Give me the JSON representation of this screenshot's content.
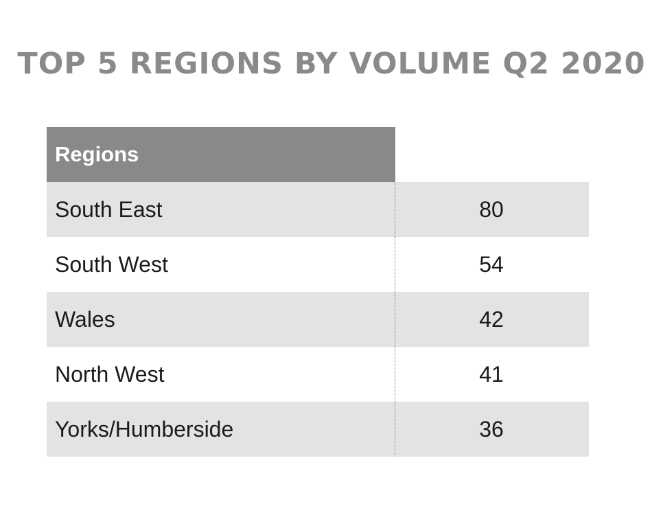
{
  "title": "TOP 5 REGIONS BY VOLUME Q2 2020",
  "header": {
    "regions_label": "Regions",
    "value_label": ""
  },
  "colors": {
    "title_gray": "#8a8a8a",
    "header_bg": "#898989",
    "row_shade": "#e3e3e3",
    "row_plain": "#ffffff"
  },
  "rows": [
    {
      "region": "South East",
      "value": "80"
    },
    {
      "region": "South West",
      "value": "54"
    },
    {
      "region": "Wales",
      "value": "42"
    },
    {
      "region": "North West",
      "value": "41"
    },
    {
      "region": "Yorks/Humberside",
      "value": "36"
    }
  ],
  "chart_data": {
    "type": "table",
    "title": "TOP 5 REGIONS BY VOLUME Q2 2020",
    "columns": [
      "Regions",
      ""
    ],
    "categories": [
      "South East",
      "South West",
      "Wales",
      "North West",
      "Yorks/Humberside"
    ],
    "values": [
      80,
      54,
      42,
      41,
      36
    ]
  }
}
